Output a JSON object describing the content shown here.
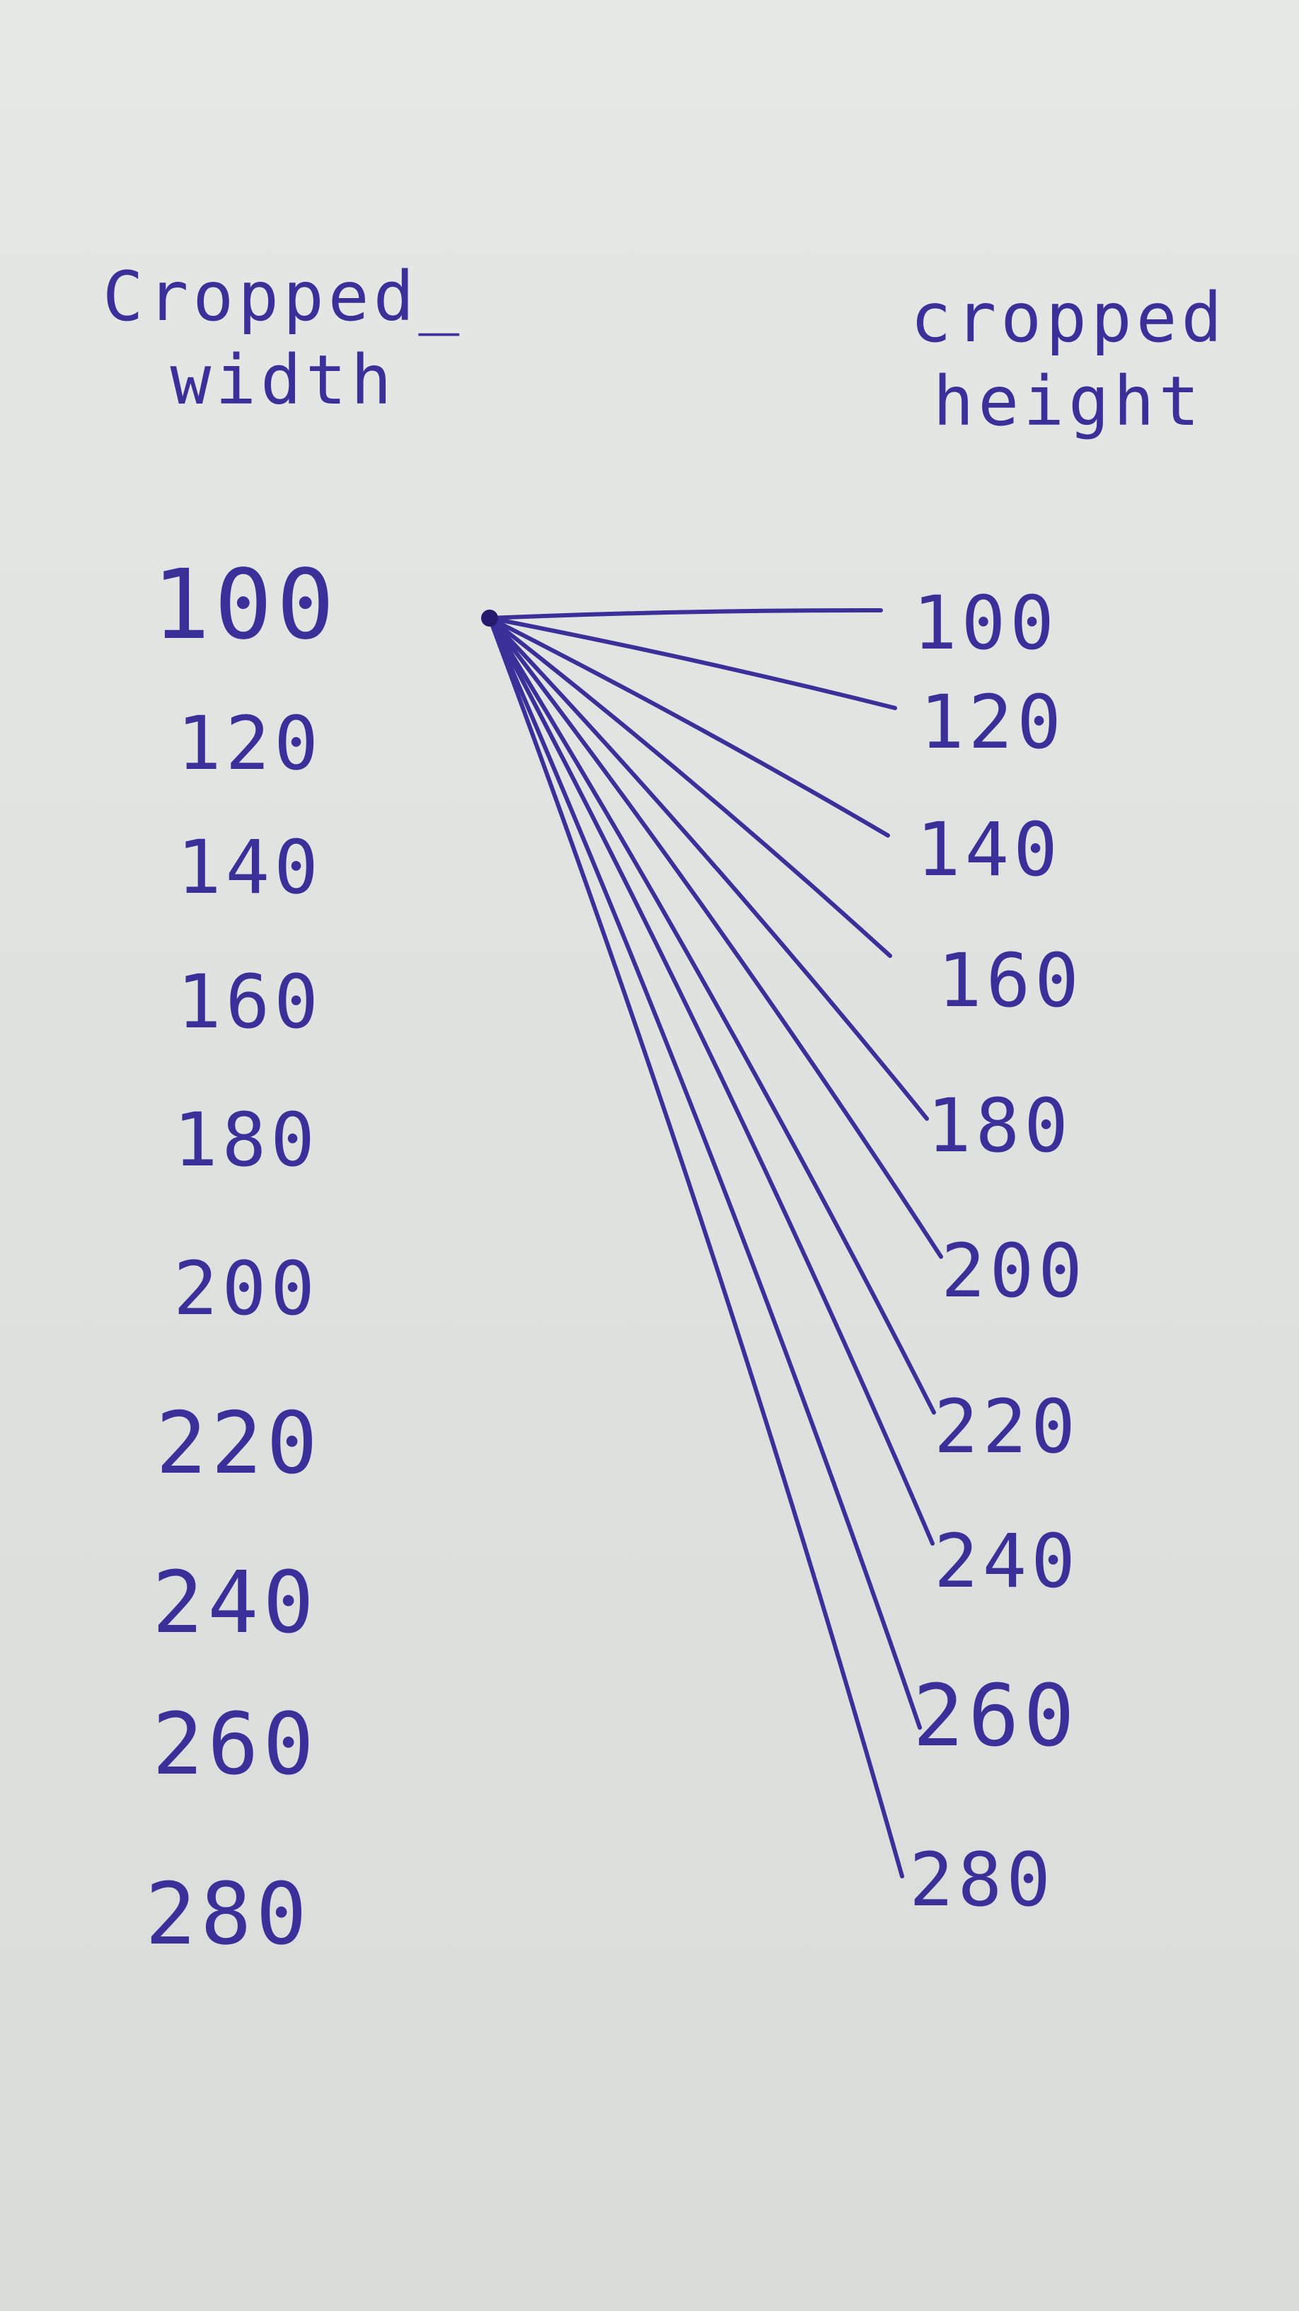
{
  "left_column": {
    "title_line1": "Cropped_",
    "title_line2": "width",
    "values": [
      "100",
      "120",
      "140",
      "160",
      "180",
      "200",
      "220",
      "240",
      "260",
      "280"
    ]
  },
  "right_column": {
    "title_line1": "cropped",
    "title_line2": "height",
    "values": [
      "100",
      "120",
      "140",
      "160",
      "180",
      "200",
      "220",
      "240",
      "260",
      "280"
    ]
  },
  "connections": {
    "from": "100",
    "to": [
      "100",
      "120",
      "140",
      "160",
      "180",
      "200",
      "220",
      "240",
      "260",
      "280"
    ]
  },
  "colors": {
    "ink": "#3b2f9a",
    "paper": "#e1e4e1"
  }
}
